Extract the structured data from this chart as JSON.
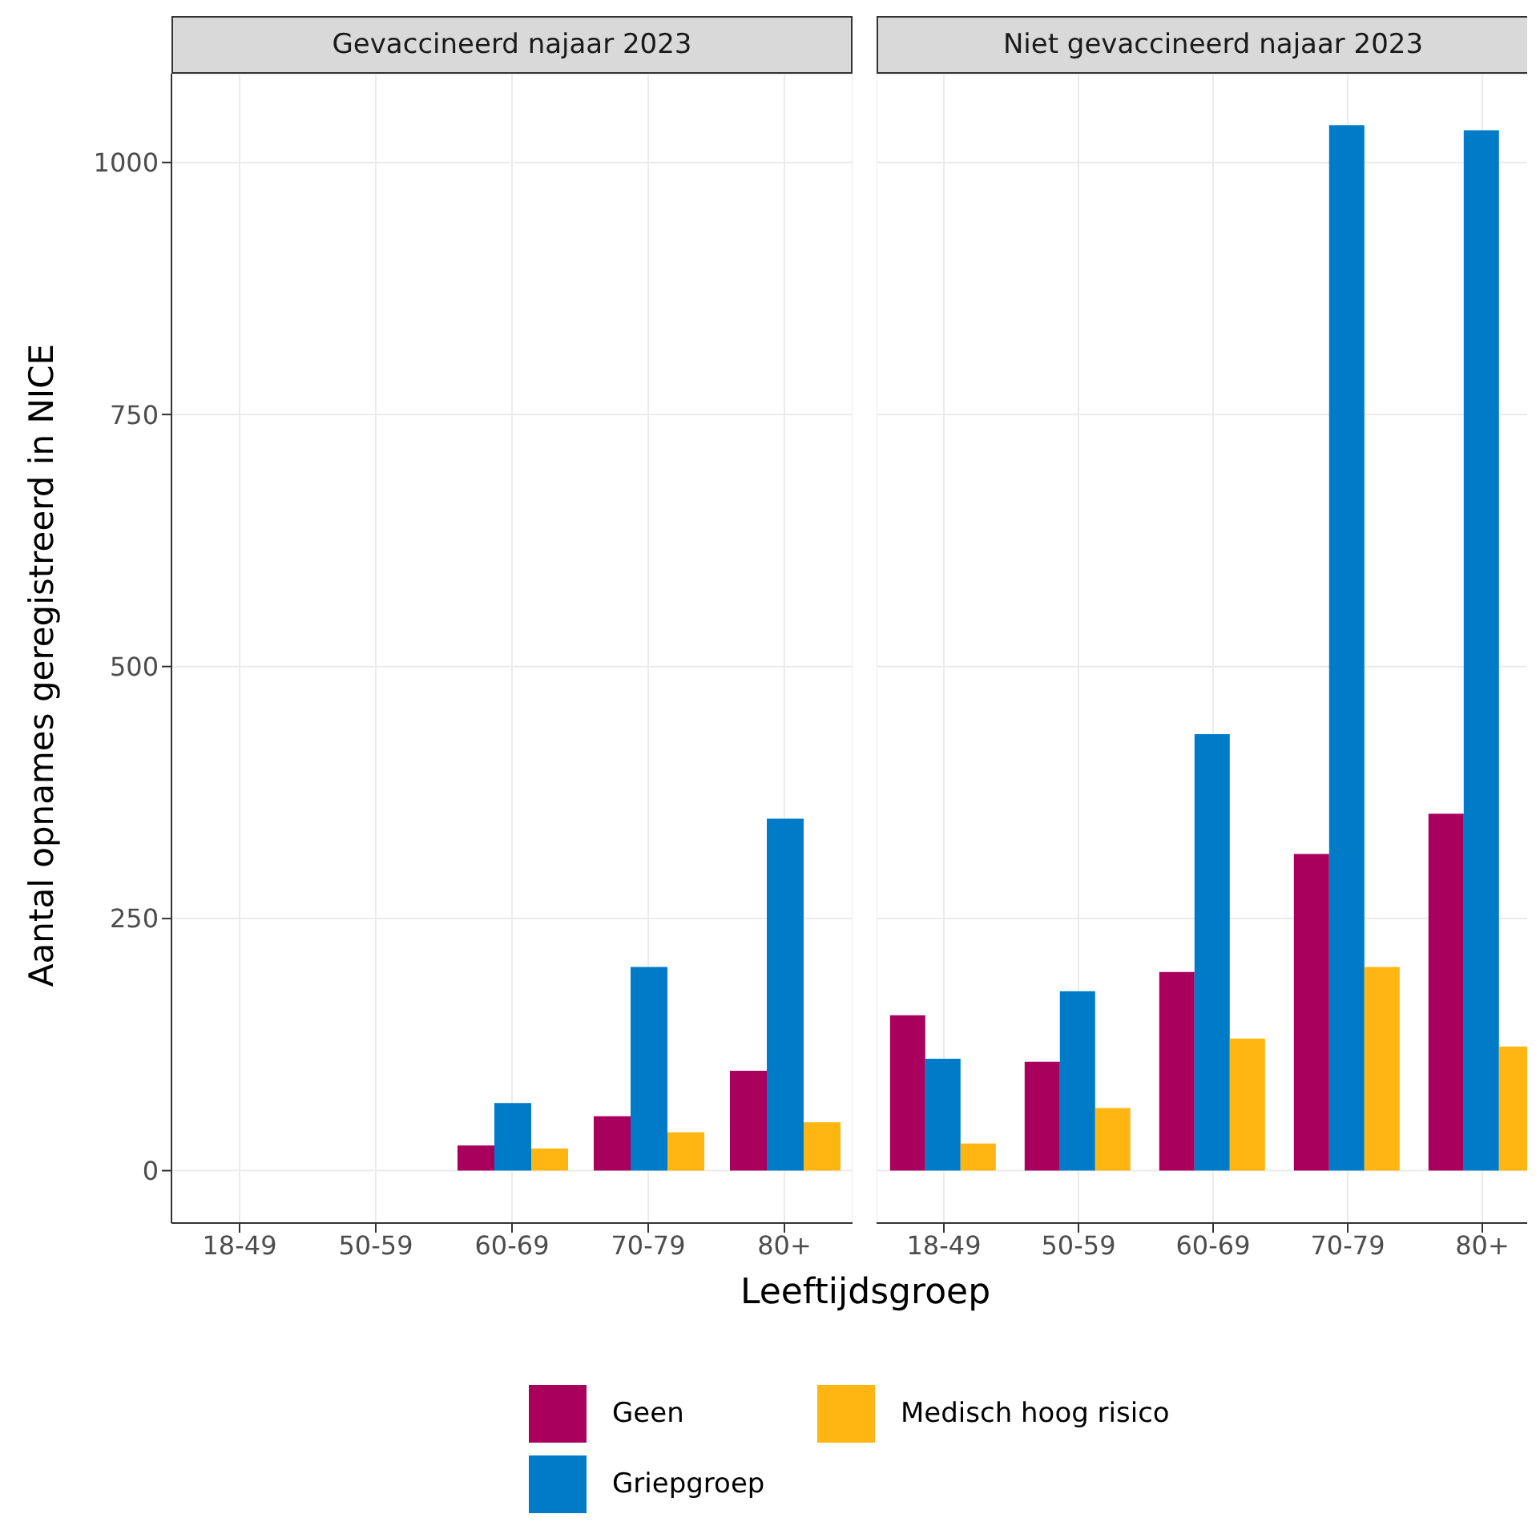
{
  "chart_data": [
    {
      "type": "bar",
      "title": "Gevaccineerd najaar 2023",
      "ylabel": "Aantal opnames geregistreerd in NICE",
      "xlabel": "Leeftijdsgroep",
      "categories": [
        "18-49",
        "50-59",
        "60-69",
        "70-79",
        "80+"
      ],
      "series": [
        {
          "name": "Geen",
          "color": "#a8005c",
          "values": [
            null,
            null,
            25,
            54,
            99
          ]
        },
        {
          "name": "Griepgroep",
          "color": "#007bc7",
          "values": [
            null,
            null,
            67,
            202,
            349
          ]
        },
        {
          "name": "Medisch hoog risico",
          "color": "#ffb612",
          "values": [
            null,
            null,
            22,
            38,
            48
          ]
        }
      ],
      "ylim": [
        -52,
        1088
      ],
      "yticks": [
        0,
        250,
        500,
        750,
        1000
      ],
      "grid": true,
      "legend": "bottom"
    },
    {
      "type": "bar",
      "title": "Niet gevaccineerd najaar 2023",
      "categories": [
        "18-49",
        "50-59",
        "60-69",
        "70-79",
        "80+"
      ],
      "series": [
        {
          "color": "#a8005c",
          "values": [
            154,
            108,
            197,
            314,
            354
          ]
        },
        {
          "color": "#007bc7",
          "values": [
            111,
            178,
            433,
            1037,
            1032
          ]
        },
        {
          "color": "#ffb612",
          "values": [
            27,
            62,
            131,
            202,
            123
          ]
        }
      ],
      "ylim": [
        -52,
        1088
      ],
      "yticks": [
        0,
        250,
        500,
        750,
        1000
      ],
      "grid": true,
      "tick_labels": "x"
    }
  ]
}
